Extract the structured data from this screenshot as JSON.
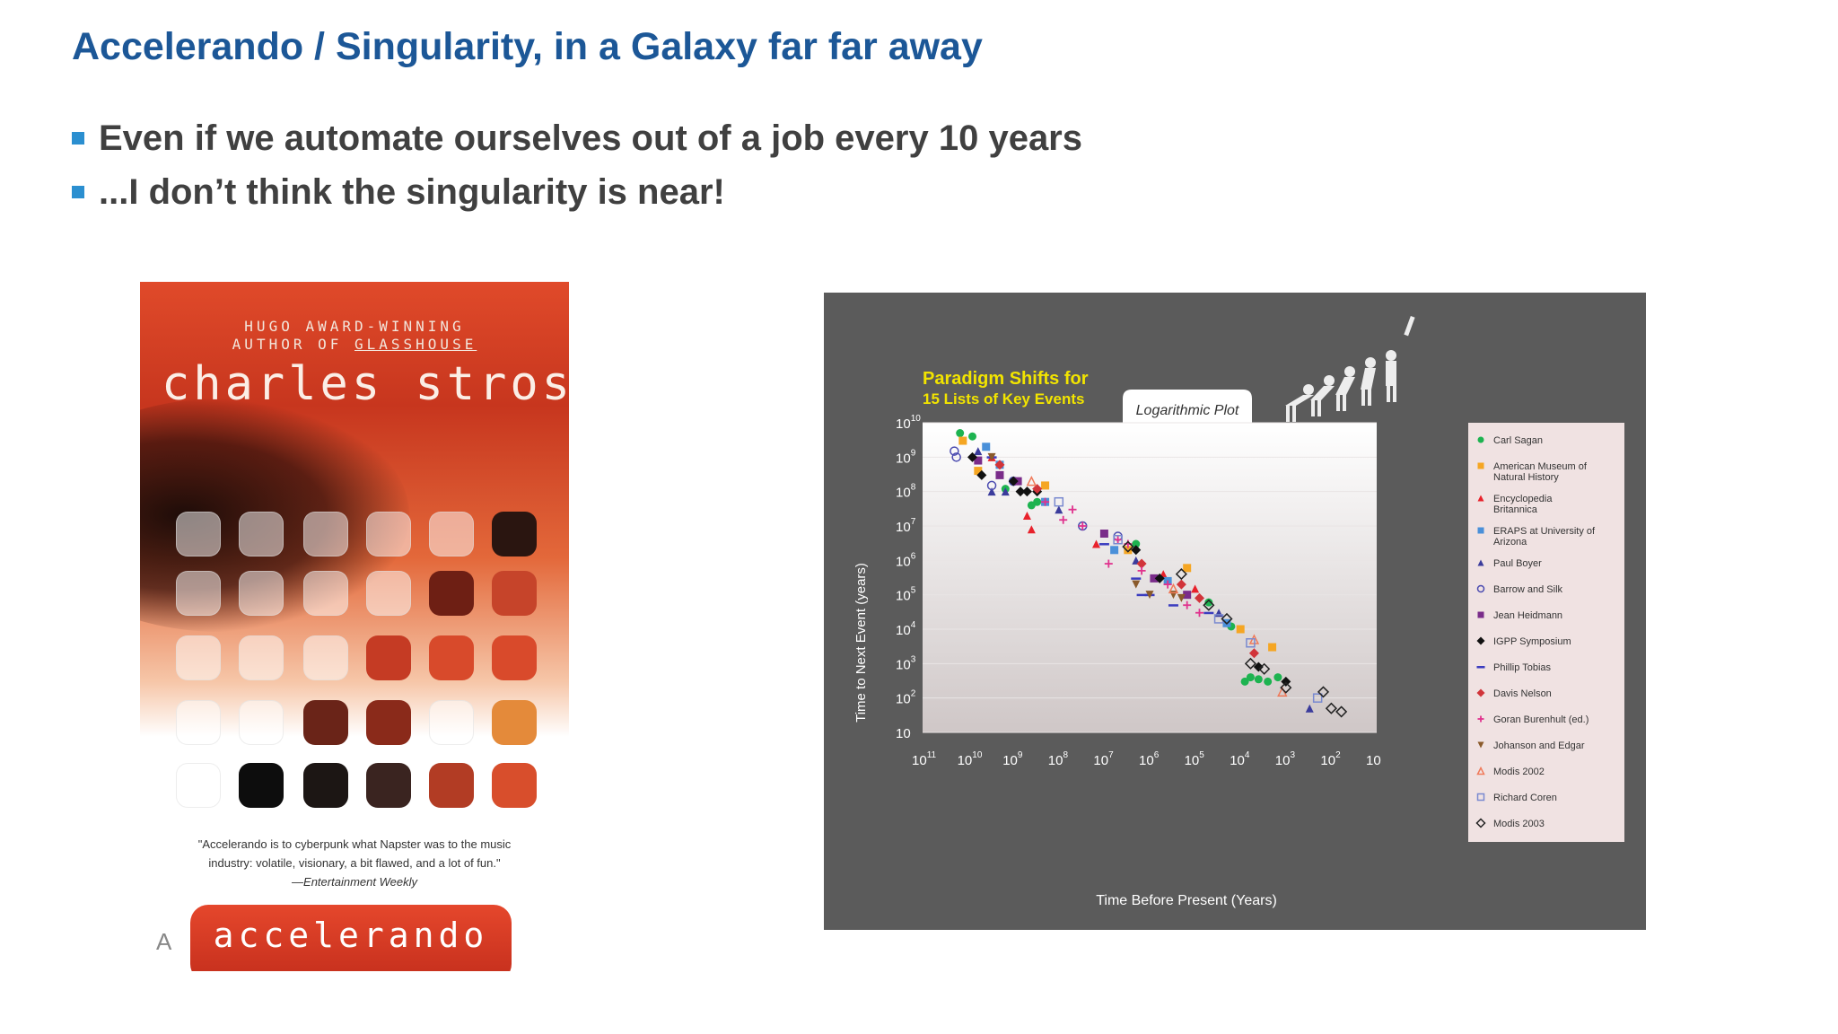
{
  "slide": {
    "title": "Accelerando / Singularity, in a Galaxy far far away",
    "bullets": [
      "Even if we automate ourselves out of a job every 10 years",
      "...I don’t think the singularity is near!"
    ],
    "accent_color": "#1c5797",
    "bullet_color": "#2b8fd0"
  },
  "book": {
    "award_line1": "HUGO AWARD-WINNING",
    "award_line2_prefix": "AUTHOR OF ",
    "award_line2_title": "GLASSHOUSE",
    "author": "charles stross",
    "quote_line1": "\"Accelerando is to cyberpunk what Napster was to the music",
    "quote_line2": "industry: volatile, visionary, a bit flawed, and a lot of fun.\"",
    "quote_source": "—Entertainment Weekly",
    "title": "accelerando",
    "publisher_logo": "A"
  },
  "chart_data": {
    "type": "scatter",
    "title": "Paradigm Shifts for",
    "subtitle": "15 Lists of Key Events",
    "tab_label": "Logarithmic Plot",
    "xlabel": "Time Before Present (Years)",
    "ylabel": "Time to Next Event (years)",
    "x_scale": "log",
    "y_scale": "log",
    "x_reversed": true,
    "xlim": [
      100000000000,
      10
    ],
    "ylim": [
      10,
      10000000000
    ],
    "x_ticks": [
      {
        "base": "10",
        "exp": "11"
      },
      {
        "base": "10",
        "exp": "10"
      },
      {
        "base": "10",
        "exp": "9"
      },
      {
        "base": "10",
        "exp": "8"
      },
      {
        "base": "10",
        "exp": "7"
      },
      {
        "base": "10",
        "exp": "6"
      },
      {
        "base": "10",
        "exp": "5"
      },
      {
        "base": "10",
        "exp": "4"
      },
      {
        "base": "10",
        "exp": "3"
      },
      {
        "base": "10",
        "exp": "2"
      },
      {
        "base": "10",
        "exp": ""
      }
    ],
    "y_ticks": [
      {
        "base": "10",
        "exp": "10"
      },
      {
        "base": "10",
        "exp": "9"
      },
      {
        "base": "10",
        "exp": "8"
      },
      {
        "base": "10",
        "exp": "7"
      },
      {
        "base": "10",
        "exp": "6"
      },
      {
        "base": "10",
        "exp": "5"
      },
      {
        "base": "10",
        "exp": "4"
      },
      {
        "base": "10",
        "exp": "3"
      },
      {
        "base": "10",
        "exp": "2"
      },
      {
        "base": "10",
        "exp": ""
      }
    ],
    "grid": true,
    "legend_position": "right",
    "series": [
      {
        "name": "Carl Sagan",
        "marker": "circle",
        "color": "#1db350",
        "points": [
          [
            15000000000.0,
            5000000000.0
          ],
          [
            8000000000.0,
            4000000000.0
          ],
          [
            1500000000.0,
            120000000.0
          ],
          [
            400000000.0,
            40000000.0
          ],
          [
            300000000.0,
            50000000.0
          ],
          [
            2000000.0,
            3000000.0
          ],
          [
            50000.0,
            60000.0
          ],
          [
            16000.0,
            12000.0
          ],
          [
            8000.0,
            300.0
          ],
          [
            6000.0,
            400.0
          ],
          [
            4000.0,
            350.0
          ],
          [
            2500.0,
            300.0
          ],
          [
            1500.0,
            400.0
          ]
        ]
      },
      {
        "name": "American Museum of Natural History",
        "marker": "square",
        "color": "#f5a623",
        "points": [
          [
            13000000000.0,
            3000000000.0
          ],
          [
            6000000000.0,
            400000000.0
          ],
          [
            200000000.0,
            150000000.0
          ],
          [
            3000000.0,
            2000000.0
          ],
          [
            150000.0,
            600000.0
          ],
          [
            10000.0,
            10000.0
          ],
          [
            2000.0,
            3000.0
          ]
        ]
      },
      {
        "name": "Encyclopedia Britannica",
        "marker": "triangle",
        "color": "#e8212b",
        "points": [
          [
            3000000000.0,
            1000000000.0
          ],
          [
            500000000.0,
            20000000.0
          ],
          [
            400000000.0,
            8000000.0
          ],
          [
            15000000.0,
            3000000.0
          ],
          [
            500000.0,
            400000.0
          ],
          [
            100000.0,
            150000.0
          ]
        ]
      },
      {
        "name": "ERAPS at University of Arizona",
        "marker": "square",
        "color": "#4a90d9",
        "points": [
          [
            4000000000.0,
            2000000000.0
          ],
          [
            2000000000.0,
            600000000.0
          ],
          [
            200000000.0,
            50000000.0
          ],
          [
            6000000.0,
            2000000.0
          ],
          [
            400000.0,
            250000.0
          ],
          [
            20000.0,
            15000.0
          ]
        ]
      },
      {
        "name": "Paul Boyer",
        "marker": "triangle",
        "color": "#3b3c9c",
        "points": [
          [
            6000000000.0,
            1500000000.0
          ],
          [
            3000000000.0,
            100000000.0
          ],
          [
            1500000000.0,
            100000000.0
          ],
          [
            100000000.0,
            30000000.0
          ],
          [
            2000000.0,
            1000000.0
          ],
          [
            30000.0,
            30000.0
          ],
          [
            300.0,
            50.0
          ]
        ]
      },
      {
        "name": "Barrow and Silk",
        "marker": "ring",
        "color": "#4a4ab0",
        "points": [
          [
            20000000000.0,
            1500000000.0
          ],
          [
            18000000000.0,
            1000000000.0
          ],
          [
            3000000000.0,
            150000000.0
          ],
          [
            1000000000.0,
            200000000.0
          ],
          [
            30000000.0,
            10000000.0
          ],
          [
            5000000.0,
            5000000.0
          ]
        ]
      },
      {
        "name": "Jean Heidmann",
        "marker": "square",
        "color": "#7a2c8a",
        "points": [
          [
            6000000000.0,
            800000000.0
          ],
          [
            2000000000.0,
            300000000.0
          ],
          [
            800000000.0,
            200000000.0
          ],
          [
            10000000.0,
            6000000.0
          ],
          [
            800000.0,
            300000.0
          ],
          [
            150000.0,
            100000.0
          ]
        ]
      },
      {
        "name": "IGPP Symposium",
        "marker": "diamond",
        "color": "#111111",
        "points": [
          [
            8000000000.0,
            1000000000.0
          ],
          [
            5000000000.0,
            300000000.0
          ],
          [
            1000000000.0,
            200000000.0
          ],
          [
            700000000.0,
            100000000.0
          ],
          [
            500000000.0,
            100000000.0
          ],
          [
            300000000.0,
            100000000.0
          ],
          [
            2000000.0,
            2000000.0
          ],
          [
            600000.0,
            300000.0
          ],
          [
            4000.0,
            800.0
          ],
          [
            1000.0,
            300.0
          ]
        ]
      },
      {
        "name": "Phillip Tobias",
        "marker": "dash",
        "color": "#3b3cbf",
        "points": [
          [
            3000000000.0,
            1000000000.0
          ],
          [
            10000000.0,
            3000000.0
          ],
          [
            2000000.0,
            300000.0
          ],
          [
            1500000.0,
            100000.0
          ],
          [
            1000000.0,
            100000.0
          ],
          [
            300000.0,
            50000.0
          ],
          [
            50000.0,
            30000.0
          ]
        ]
      },
      {
        "name": "Davis Nelson",
        "marker": "diamond",
        "color": "#d1343a",
        "points": [
          [
            2000000000.0,
            600000000.0
          ],
          [
            300000000.0,
            120000000.0
          ],
          [
            1500000.0,
            800000.0
          ],
          [
            200000.0,
            200000.0
          ],
          [
            80000.0,
            80000.0
          ],
          [
            5000.0,
            2000.0
          ]
        ]
      },
      {
        "name": "Goran Burenhult (ed.)",
        "marker": "plus",
        "color": "#e0338e",
        "points": [
          [
            200000000.0,
            50000000.0
          ],
          [
            80000000.0,
            15000000.0
          ],
          [
            50000000.0,
            30000000.0
          ],
          [
            30000000.0,
            10000000.0
          ],
          [
            8000000.0,
            800000.0
          ],
          [
            5000000.0,
            4000000.0
          ],
          [
            3000000.0,
            3000000.0
          ],
          [
            1500000.0,
            500000.0
          ],
          [
            400000.0,
            200000.0
          ],
          [
            150000.0,
            50000.0
          ],
          [
            80000.0,
            30000.0
          ]
        ]
      },
      {
        "name": "Johanson and Edgar",
        "marker": "triangle-down",
        "color": "#8a5a2b",
        "points": [
          [
            3000000000.0,
            1000000000.0
          ],
          [
            2000000.0,
            200000.0
          ],
          [
            1000000.0,
            100000.0
          ],
          [
            300000.0,
            100000.0
          ],
          [
            200000.0,
            80000.0
          ]
        ]
      },
      {
        "name": "Modis 2002",
        "marker": "triangle-open",
        "color": "#f07a5a",
        "points": [
          [
            400000000.0,
            200000000.0
          ],
          [
            300000.0,
            150000.0
          ],
          [
            5000.0,
            5000.0
          ],
          [
            1200.0,
            150.0
          ]
        ]
      },
      {
        "name": "Richard Coren",
        "marker": "square-open",
        "color": "#7a8ad0",
        "points": [
          [
            100000000.0,
            50000000.0
          ],
          [
            5000000.0,
            4000000.0
          ],
          [
            30000.0,
            20000.0
          ],
          [
            6000.0,
            4000.0
          ],
          [
            200.0,
            100.0
          ]
        ]
      },
      {
        "name": "Modis 2003",
        "marker": "diamond-open",
        "color": "#222222",
        "points": [
          [
            3000000.0,
            2500000.0
          ],
          [
            200000.0,
            400000.0
          ],
          [
            50000.0,
            50000.0
          ],
          [
            20000.0,
            20000.0
          ],
          [
            6000.0,
            1000.0
          ],
          [
            3000.0,
            700.0
          ],
          [
            1000.0,
            200.0
          ],
          [
            150.0,
            150.0
          ],
          [
            100.0,
            50.0
          ],
          [
            60.0,
            40.0
          ]
        ]
      }
    ]
  }
}
